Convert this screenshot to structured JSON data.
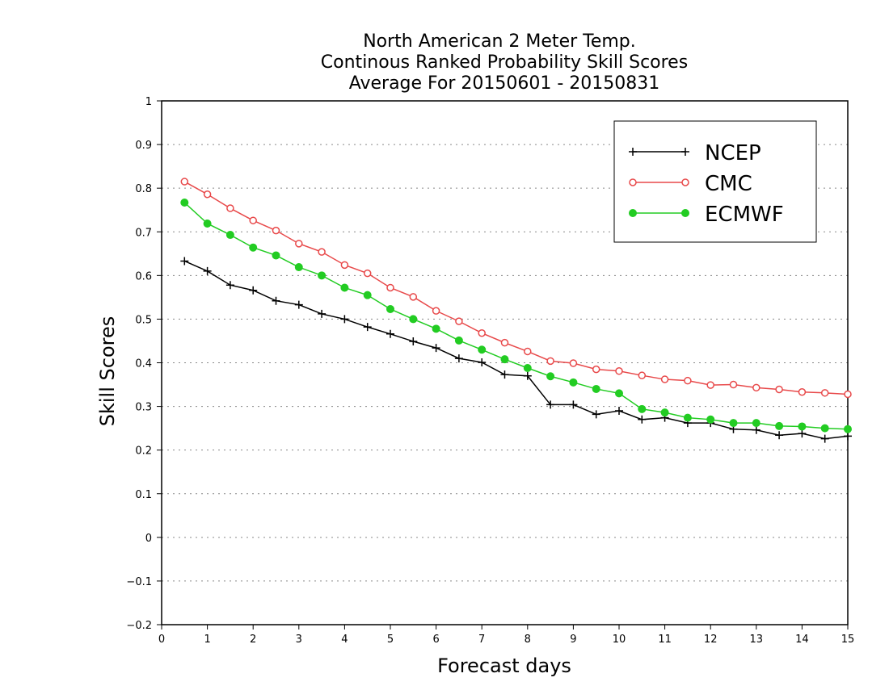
{
  "chart_data": {
    "type": "line",
    "title": [
      "North American 2 Meter Temp.",
      "Continous Ranked Probability Skill Scores",
      "Average For 20150601 - 20150831"
    ],
    "xlabel": "Forecast days",
    "ylabel": "Skill Scores",
    "xlim": [
      0,
      15
    ],
    "ylim": [
      -0.2,
      1
    ],
    "xticks": [
      "0",
      "1",
      "2",
      "3",
      "4",
      "5",
      "6",
      "7",
      "8",
      "9",
      "10",
      "11",
      "12",
      "13",
      "14",
      "15"
    ],
    "yticks": [
      "−0.2",
      "−0.1",
      "0",
      "0.1",
      "0.2",
      "0.3",
      "0.4",
      "0.5",
      "0.6",
      "0.7",
      "0.8",
      "0.9",
      "1"
    ],
    "grid": "horizontal dotted",
    "legend_position": "top-right",
    "x": [
      0.5,
      1,
      1.5,
      2,
      2.5,
      3,
      3.5,
      4,
      4.5,
      5,
      5.5,
      6,
      6.5,
      7,
      7.5,
      8,
      8.5,
      9,
      9.5,
      10,
      10.5,
      11,
      11.5,
      12,
      12.5,
      13,
      13.5,
      14,
      14.5,
      15
    ],
    "series": [
      {
        "name": "NCEP",
        "color": "#000000",
        "marker": "plus",
        "values": [
          0.633,
          0.61,
          0.578,
          0.566,
          0.542,
          0.533,
          0.512,
          0.5,
          0.482,
          0.466,
          0.449,
          0.434,
          0.41,
          0.401,
          0.373,
          0.37,
          0.304,
          0.304,
          0.282,
          0.29,
          0.27,
          0.274,
          0.262,
          0.262,
          0.248,
          0.246,
          0.234,
          0.238,
          0.226,
          0.232
        ]
      },
      {
        "name": "CMC",
        "color": "#e8494a",
        "marker": "open-circle",
        "values": [
          0.815,
          0.786,
          0.754,
          0.726,
          0.703,
          0.673,
          0.654,
          0.624,
          0.605,
          0.572,
          0.551,
          0.519,
          0.495,
          0.468,
          0.446,
          0.426,
          0.404,
          0.399,
          0.385,
          0.381,
          0.371,
          0.362,
          0.359,
          0.349,
          0.35,
          0.343,
          0.339,
          0.333,
          0.331,
          0.328
        ]
      },
      {
        "name": "ECMWF",
        "color": "#22cc22",
        "marker": "filled-circle",
        "values": [
          0.767,
          0.719,
          0.693,
          0.664,
          0.646,
          0.619,
          0.6,
          0.572,
          0.555,
          0.523,
          0.5,
          0.478,
          0.451,
          0.43,
          0.408,
          0.388,
          0.369,
          0.355,
          0.34,
          0.33,
          0.294,
          0.286,
          0.274,
          0.27,
          0.262,
          0.262,
          0.255,
          0.254,
          0.25,
          0.248
        ]
      }
    ]
  }
}
